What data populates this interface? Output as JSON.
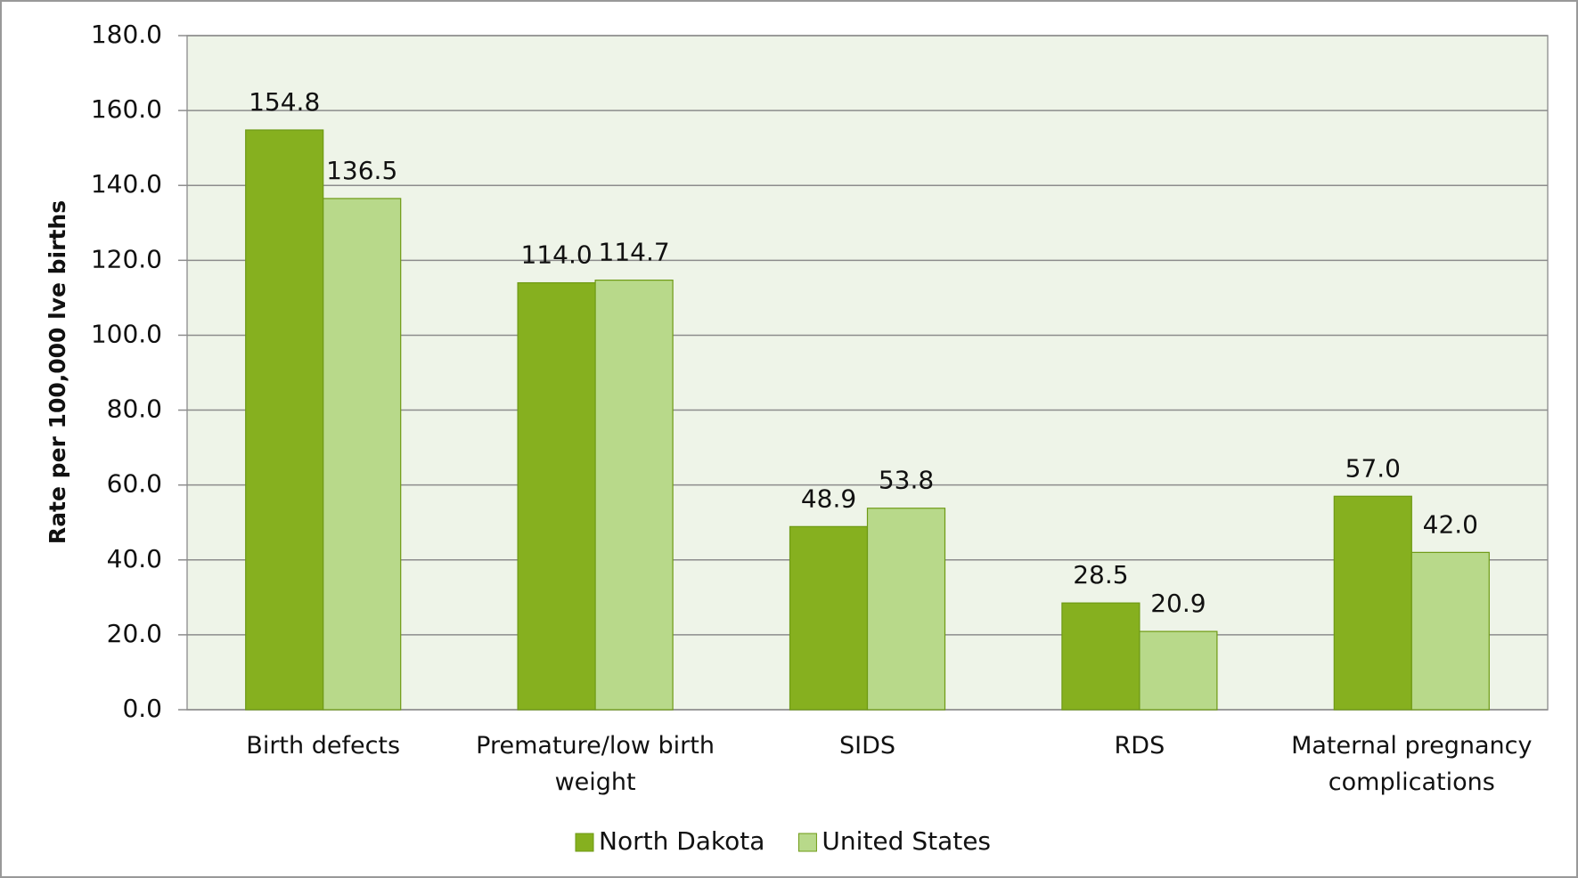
{
  "chart_data": {
    "type": "bar",
    "categories": [
      "Birth defects",
      "Premature/low birth weight",
      "SIDS",
      "RDS",
      "Maternal pregnancy complications"
    ],
    "series": [
      {
        "name": "North Dakota",
        "color": "#86b01f",
        "values": [
          154.8,
          114.0,
          48.9,
          28.5,
          57.0
        ],
        "value_labels": [
          "154.8",
          "114.0",
          "48.9",
          "28.5",
          "57.0"
        ]
      },
      {
        "name": "United States",
        "color": "#b8d98a",
        "values": [
          136.5,
          114.7,
          53.8,
          20.9,
          42.0
        ],
        "value_labels": [
          "136.5",
          "114.7",
          "53.8",
          "20.9",
          "42.0"
        ]
      }
    ],
    "y_label": "Rate per 100,000 lve births",
    "ylim": [
      0,
      180
    ],
    "yticks": [
      {
        "value": 0,
        "label": "0.0"
      },
      {
        "value": 20,
        "label": "20.0"
      },
      {
        "value": 40,
        "label": "40.0"
      },
      {
        "value": 60,
        "label": "60.0"
      },
      {
        "value": 80,
        "label": "80.0"
      },
      {
        "value": 100,
        "label": "100.0"
      },
      {
        "value": 120,
        "label": "120.0"
      },
      {
        "value": 140,
        "label": "140.0"
      },
      {
        "value": 160,
        "label": "160.0"
      },
      {
        "value": 180,
        "label": "180.0"
      }
    ],
    "grid": true,
    "legend": "bottom"
  }
}
